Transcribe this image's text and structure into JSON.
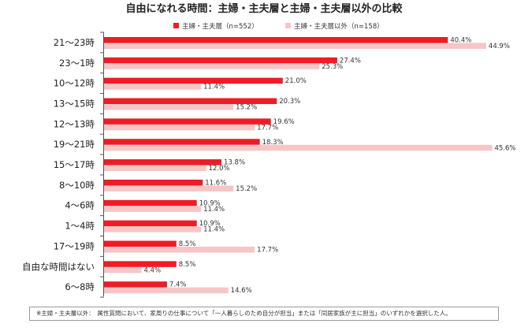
{
  "chart_data": {
    "type": "bar",
    "orientation": "horizontal",
    "title": "自由になれる時間：主婦・主夫層と主婦・主夫層以外の比較",
    "categories": [
      "21～23時",
      "23～1時",
      "10～12時",
      "13～15時",
      "12～13時",
      "19～21時",
      "15～17時",
      "8～10時",
      "4～6時",
      "1～4時",
      "17～19時",
      "自由な時間はない",
      "6～8時"
    ],
    "series": [
      {
        "name": "主婦・主夫層（n=552）",
        "color": "#ee1c25",
        "values": [
          40.4,
          27.4,
          21.0,
          20.3,
          19.6,
          18.3,
          13.8,
          11.6,
          10.9,
          10.9,
          8.5,
          8.5,
          7.4
        ],
        "labels": [
          "40.4%",
          "27.4%",
          "21.0%",
          "20.3%",
          "19.6%",
          "18.3%",
          "13.8%",
          "11.6%",
          "10.9%",
          "10.9%",
          "8.5%",
          "8.5%",
          "7.4%"
        ]
      },
      {
        "name": "主婦・主夫層以外（n=158）",
        "color": "#f7c5c5",
        "values": [
          44.9,
          25.3,
          11.4,
          15.2,
          17.7,
          45.6,
          12.0,
          15.2,
          11.4,
          11.4,
          17.7,
          4.4,
          14.6
        ],
        "labels": [
          "44.9%",
          "25.3%",
          "11.4%",
          "15.2%",
          "17.7%",
          "45.6%",
          "12.0%",
          "15.2%",
          "11.4%",
          "11.4%",
          "17.7%",
          "4.4%",
          "14.6%"
        ]
      }
    ],
    "xlim": [
      0,
      50
    ],
    "grid": false,
    "legend_position": "top"
  },
  "footnote": "※主婦・主夫層以外：　属性質問において、家周りの仕事について「一人暮らしのため自分が担当」または「同居家族が主に担当」のいずれかを選択した人。"
}
